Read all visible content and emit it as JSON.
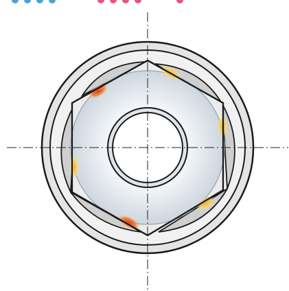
{
  "diagram": {
    "colors": {
      "background": "#ffffff",
      "outline": "#1a1a1a",
      "ring_fill": "#e6e6e6",
      "lobe_fill": "#cfcfcf",
      "hex_fill": "#eeeeee",
      "washer_fill": "#f4f6f8",
      "washer_shade": "#c9d2dc",
      "bore_fill": "#ffffff",
      "centerline": "#222222",
      "hot_red": "#e2572c",
      "hot_orange": "#f08a3a",
      "hot_yellow": "#f6c64a",
      "top_dots_blue": "#4aa3d8",
      "top_dots_pink": "#e8557a"
    },
    "contact_zones": [
      {
        "corner": "upper-left",
        "tone": "red"
      },
      {
        "corner": "top",
        "tone": "yellow"
      },
      {
        "corner": "right",
        "tone": "yellow"
      },
      {
        "corner": "lower-right",
        "tone": "yellow"
      },
      {
        "corner": "bottom",
        "tone": "red"
      },
      {
        "corner": "left",
        "tone": "yellow"
      }
    ]
  }
}
